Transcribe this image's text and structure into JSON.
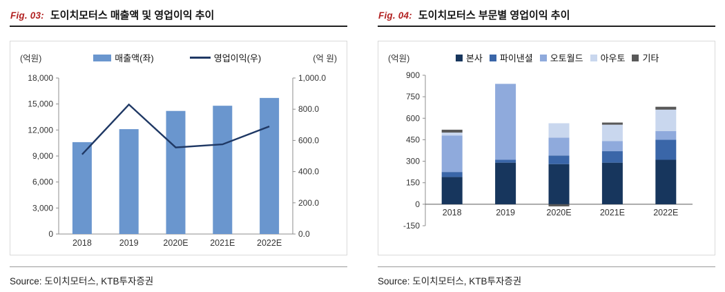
{
  "figures": [
    {
      "fig_label": "Fig. 03:",
      "title": "도이치모터스 매출액 및 영업이익 추이",
      "unit_left": "(억원)",
      "unit_right": "(억 원)",
      "source": "Source: 도이치모터스, KTB투자증권"
    },
    {
      "fig_label": "Fig. 04:",
      "title": "도이치모터스 부문별 영업이익 추이",
      "unit_left": "(억원)",
      "source": "Source: 도이치모터스, KTB투자증권"
    }
  ],
  "chart_data": [
    {
      "type": "bar",
      "subtype": "combo-bar-line",
      "title": "도이치모터스 매출액 및 영업이익 추이",
      "categories": [
        "2018",
        "2019",
        "2020E",
        "2021E",
        "2022E"
      ],
      "series": [
        {
          "name": "매출액(좌)",
          "key": "revenue",
          "type": "bar",
          "axis": "left",
          "color": "#6A96CE",
          "values": [
            10600,
            12100,
            14200,
            14800,
            15700
          ]
        },
        {
          "name": "영업이익(우)",
          "key": "operating-profit",
          "type": "line",
          "axis": "right",
          "color": "#1F3864",
          "values": [
            510,
            830,
            555,
            575,
            690
          ]
        }
      ],
      "y_left": {
        "label": "(억원)",
        "min": 0,
        "max": 18000,
        "step": 3000
      },
      "y_right": {
        "label": "(억 원)",
        "min": 0,
        "max": 1000,
        "step": 200
      },
      "legend_position": "top",
      "grid": false
    },
    {
      "type": "bar",
      "subtype": "stacked-bar",
      "title": "도이치모터스 부문별 영업이익 추이",
      "categories": [
        "2018",
        "2019",
        "2020E",
        "2021E",
        "2022E"
      ],
      "series": [
        {
          "name": "본사",
          "key": "hq",
          "color": "#17365D",
          "values": [
            190,
            290,
            280,
            290,
            310
          ]
        },
        {
          "name": "파이낸셜",
          "key": "financial",
          "color": "#3A66A8",
          "values": [
            35,
            20,
            60,
            80,
            140
          ]
        },
        {
          "name": "오토월드",
          "key": "autoworld",
          "color": "#8FAADC",
          "values": [
            255,
            530,
            125,
            70,
            60
          ]
        },
        {
          "name": "아우토",
          "key": "auto",
          "color": "#C9D7EE",
          "values": [
            20,
            0,
            100,
            115,
            150
          ]
        },
        {
          "name": "기타",
          "key": "others",
          "color": "#595959",
          "values": [
            20,
            0,
            -15,
            15,
            20
          ]
        }
      ],
      "y": {
        "label": "(억원)",
        "min": -150,
        "max": 900,
        "step": 150
      },
      "legend_position": "top",
      "grid": false
    }
  ],
  "colors": {
    "fig_label": "#B22222",
    "header_rule": "#1F1F1F",
    "chart_border": "#D9D9D9",
    "axis": "#8C8C8C",
    "source_rule": "#999999"
  }
}
